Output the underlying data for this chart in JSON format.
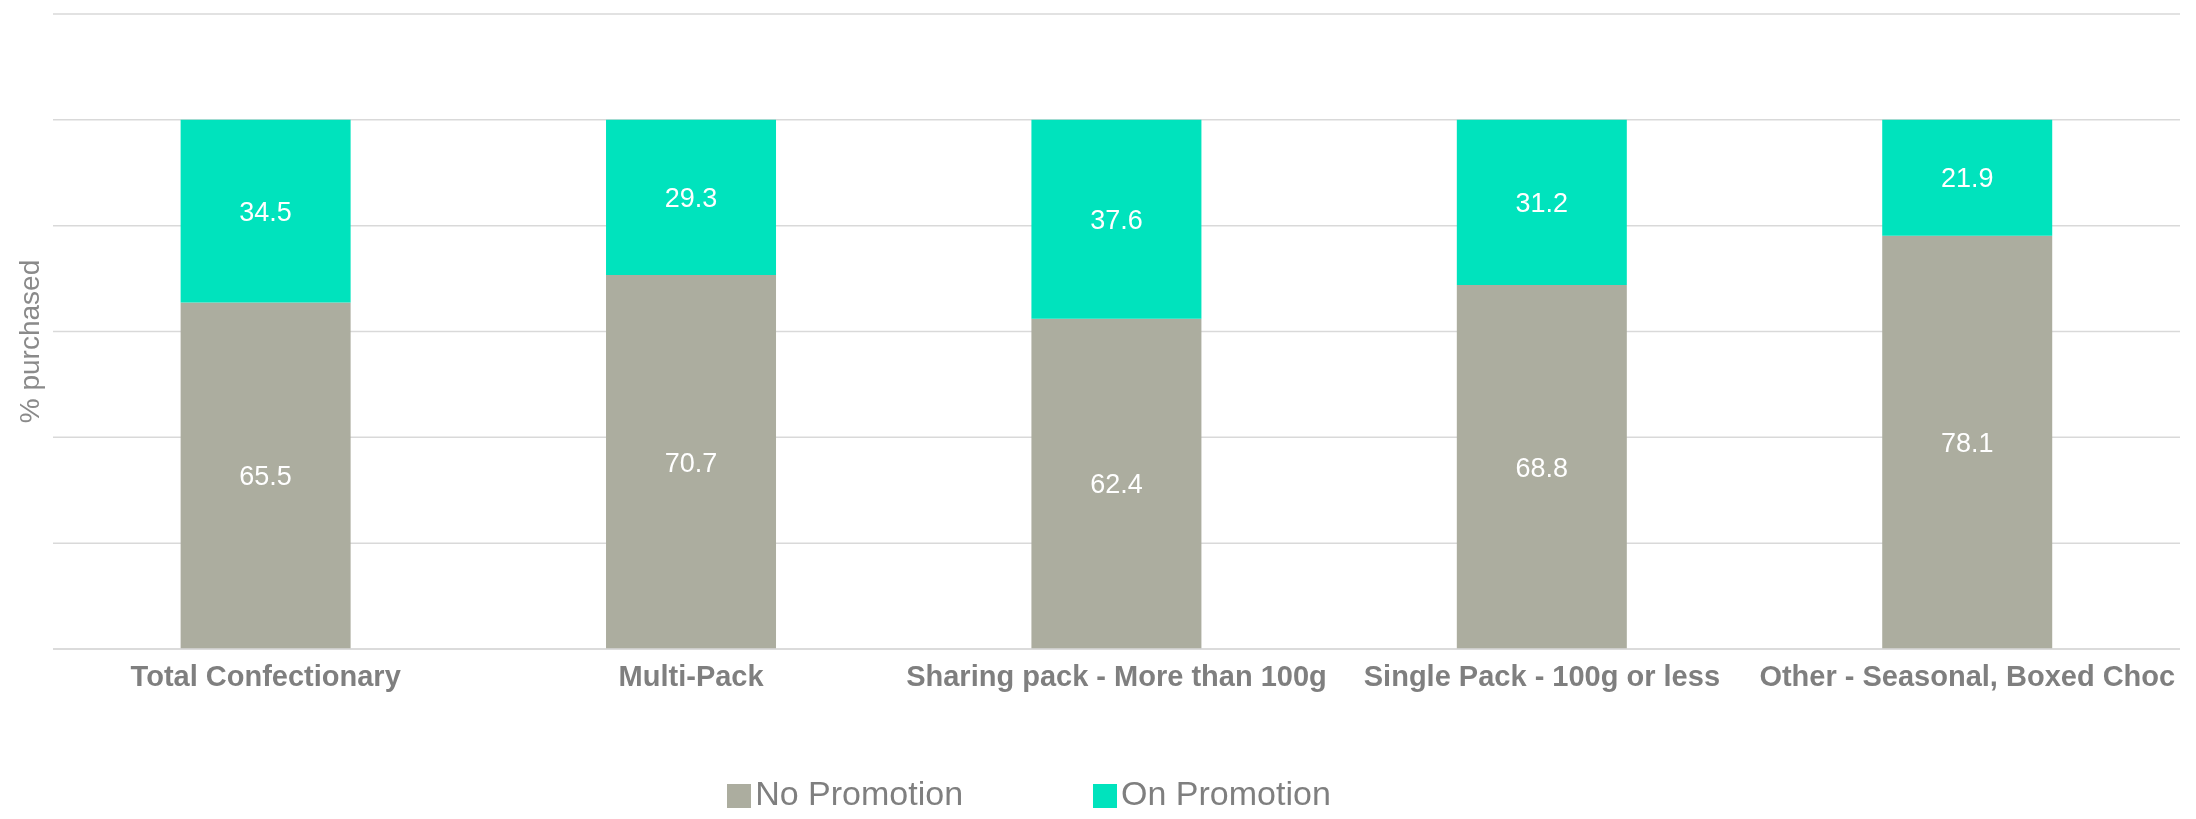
{
  "chart_data": {
    "type": "bar",
    "stacked": true,
    "ylabel": "% purchased",
    "categories": [
      "Total Confectionary",
      "Multi-Pack",
      "Sharing pack - More than 100g",
      "Single Pack - 100g or less",
      "Other - Seasonal, Boxed Choc"
    ],
    "series": [
      {
        "name": "No Promotion",
        "color": "#acad9f",
        "values": [
          65.5,
          70.7,
          62.4,
          68.8,
          78.1
        ]
      },
      {
        "name": "On Promotion",
        "color": "#00e3bd",
        "values": [
          34.5,
          29.3,
          37.6,
          31.2,
          21.9
        ]
      }
    ],
    "ylim": [
      0,
      120
    ],
    "yticks": [
      {
        "value": 0,
        "label": null
      },
      {
        "value": 20,
        "label": null
      },
      {
        "value": 40,
        "label": null
      },
      {
        "value": 60,
        "label": null
      },
      {
        "value": 80,
        "label": null
      },
      {
        "value": 100,
        "label": null
      },
      {
        "value": 120,
        "label": null
      }
    ],
    "grid": "y",
    "legend": "bottom",
    "tick_labels": "x",
    "data_labels": true
  }
}
